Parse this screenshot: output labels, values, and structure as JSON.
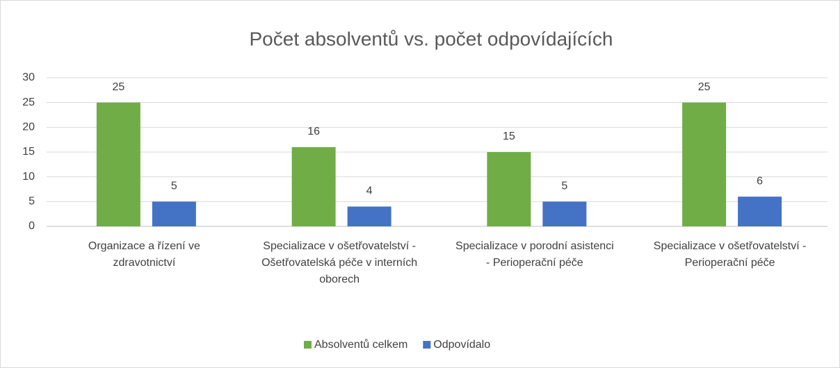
{
  "chart_data": {
    "type": "bar",
    "title": "Počet absolventů vs. počet odpovídajících",
    "categories": [
      "Organizace a řízení ve zdravotnictví",
      "Specializace v ošetřovatelství - Ošetřovatelská péče v interních oborech",
      "Specializace v porodní asistenci - Perioperační péče",
      "Specializace v ošetřovatelství - Perioperační péče"
    ],
    "series": [
      {
        "name": "Absolventů celkem",
        "color": "#70ad47",
        "values": [
          25,
          16,
          15,
          25
        ]
      },
      {
        "name": "Odpovídalo",
        "color": "#4472c4",
        "values": [
          5,
          4,
          5,
          6
        ]
      }
    ],
    "ylim": [
      0,
      30
    ],
    "yticks": [
      0,
      5,
      10,
      15,
      20,
      25,
      30
    ],
    "grid": true,
    "legend": "bottom"
  }
}
